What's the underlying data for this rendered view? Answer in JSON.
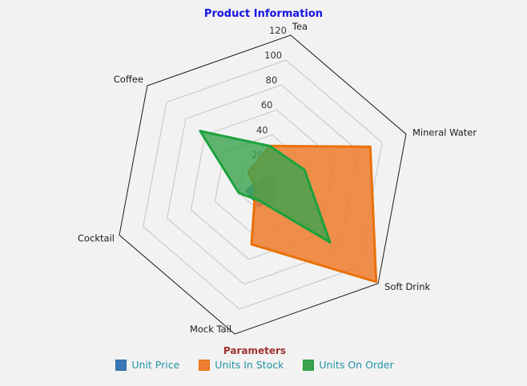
{
  "title": {
    "text": "Product Information",
    "color": "#1414e6"
  },
  "chart_data": {
    "type": "radar",
    "categories": [
      "Tea",
      "Mineral Water",
      "Soft Drink",
      "Mock Tail",
      "Cocktail",
      "Coffee"
    ],
    "radial_axis": {
      "min": 0,
      "max": 120,
      "tick_interval": 20,
      "tick_labels": [
        "20",
        "40",
        "60",
        "80",
        "100",
        "120"
      ],
      "tick_color": "#333333",
      "outer_ring_color": "#1a1a1a",
      "grid_color": "#c4c4c4",
      "grid_on": true
    },
    "series": [
      {
        "name": "Unit Price",
        "fill": "#3b78b5",
        "border": "#2f6da8",
        "values": [
          8,
          10,
          16,
          18,
          14,
          5
        ]
      },
      {
        "name": "Units In Stock",
        "fill": "#ee7d31",
        "border": "#e97106",
        "values": [
          31,
          90,
          118,
          48,
          6,
          15
        ]
      },
      {
        "name": "Units On Order",
        "fill": "#3aa24e",
        "border": "#1ca23c",
        "values": [
          31,
          35,
          70,
          13,
          20,
          65
        ]
      }
    ],
    "legend": {
      "title": "Parameters",
      "title_color": "#9e3232",
      "label_color": "#2093a5",
      "position": "bottom"
    },
    "category_label_color": "#1a1a1a"
  }
}
